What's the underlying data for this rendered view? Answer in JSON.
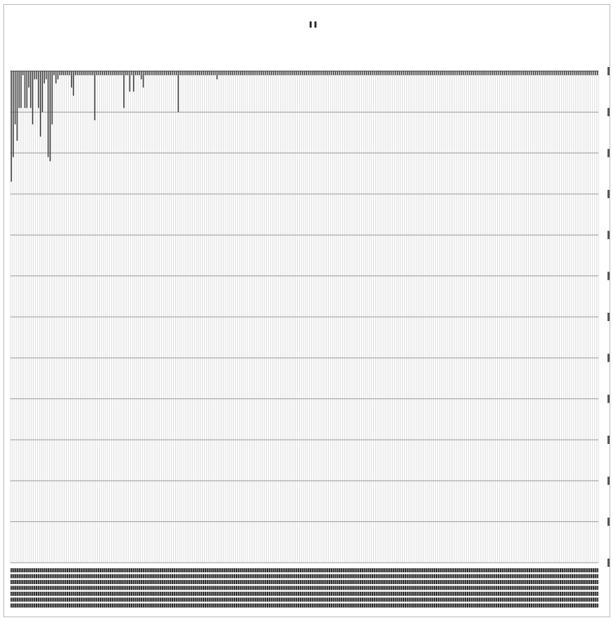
{
  "chart_data": {
    "type": "bar",
    "orientation": "downward-bars",
    "title": "",
    "xlabel": "",
    "ylabel": "",
    "grid": true,
    "legend": "top-center",
    "ylim": [
      0,
      12
    ],
    "series": [
      {
        "values": [
          2.7,
          2.1,
          1.3,
          1.7,
          0.9,
          0.9,
          0.1,
          0.9,
          0.9,
          0.4,
          0.9,
          1.3,
          0.2,
          0.2,
          0.9,
          1.6,
          1.0,
          0.3,
          0.2,
          2.1,
          2.2,
          1.3,
          0.1,
          0.3,
          0.2,
          0.1,
          0.1,
          0.1,
          0.1,
          0.1,
          0.1,
          0.4,
          0.6,
          0.1,
          0.1,
          0.1,
          0.1,
          0.1,
          0.1,
          0.1,
          0.1,
          0.1,
          0.1,
          1.2,
          0.1,
          0.1,
          0.1,
          0.1,
          0.1,
          0.1,
          0.1,
          0.1,
          0.1,
          0.1,
          0.1,
          0.1,
          0.1,
          0.1,
          0.9,
          0.1,
          0.1,
          0.5,
          0.1,
          0.5,
          0.1,
          0.1,
          0.1,
          0.2,
          0.4,
          0.1,
          0.1,
          0.1,
          0.1,
          0.1,
          0.1,
          0.1,
          0.1,
          0.1,
          0.1,
          0.1,
          0.1,
          0.1,
          0.1,
          0.1,
          0.1,
          0.1,
          1.0,
          0.1,
          0.1,
          0.1,
          0.1,
          0.1,
          0.1,
          0.1,
          0.1,
          0.1,
          0.1,
          0.1,
          0.1,
          0.1,
          0.1,
          0.1,
          0.1,
          0.1,
          0.1,
          0.1,
          0.2,
          0.1,
          0.1,
          0.1,
          0.1,
          0.1,
          0.1,
          0.1,
          0.1,
          0.1,
          0.1,
          0.1,
          0.1,
          0.1,
          0.1,
          0.1,
          0.1,
          0.1,
          0.1,
          0.1,
          0.1,
          0.1,
          0.1,
          0.1,
          0.1,
          0.1,
          0.1,
          0.1,
          0.1,
          0.1,
          0.1,
          0.1,
          0.1,
          0.1,
          0.1,
          0.1,
          0.1,
          0.1,
          0.1,
          0.1,
          0.1,
          0.1,
          0.1,
          0.1,
          0.1,
          0.1,
          0.1,
          0.1,
          0.1,
          0.1,
          0.1,
          0.1,
          0.1,
          0.1,
          0.1,
          0.1,
          0.1,
          0.1,
          0.1,
          0.1,
          0.1,
          0.1,
          0.1,
          0.1,
          0.1,
          0.1,
          0.1,
          0.1,
          0.1,
          0.1,
          0.1,
          0.1,
          0.1,
          0.1,
          0.1,
          0.1,
          0.1,
          0.1,
          0.1,
          0.1,
          0.1,
          0.1,
          0.1,
          0.1,
          0.1,
          0.1,
          0.1,
          0.1,
          0.1,
          0.1,
          0.1,
          0.1,
          0.1,
          0.1,
          0.1,
          0.1,
          0.1,
          0.1,
          0.1,
          0.1,
          0.1,
          0.1,
          0.1,
          0.1,
          0.1,
          0.1,
          0.1,
          0.1,
          0.1,
          0.1,
          0.1,
          0.1,
          0.1,
          0.1,
          0.1,
          0.1,
          0.1,
          0.1,
          0.1,
          0.1,
          0.1,
          0.1,
          0.1,
          0.1,
          0.1,
          0.1,
          0.1,
          0.1,
          0.1,
          0.1,
          0.1,
          0.1,
          0.1,
          0.1,
          0.1,
          0.1,
          0.1,
          0.1,
          0.1,
          0.1,
          0.1,
          0.1,
          0.1,
          0.1,
          0.1,
          0.1,
          0.1,
          0.1,
          0.1,
          0.1,
          0.1,
          0.1,
          0.1,
          0.1,
          0.1,
          0.1,
          0.1,
          0.1,
          0.1,
          0.1,
          0.1,
          0.1,
          0.1,
          0.1,
          0.1,
          0.1,
          0.1,
          0.1,
          0.1,
          0.1,
          0.1,
          0.1,
          0.1,
          0.1,
          0.1,
          0.1,
          0.1,
          0.1,
          0.1,
          0.1,
          0.1,
          0.1,
          0.1,
          0.1,
          0.1,
          0.1,
          0.1,
          0.1,
          0.1,
          0.1,
          0.1,
          0.1,
          0.1,
          0.1,
          0.1,
          0.1,
          0.1
        ]
      }
    ]
  },
  "colors": {
    "bar": "#333333",
    "gridline": "#c8c8c8",
    "axis": "#555555",
    "background": "#ffffff"
  }
}
